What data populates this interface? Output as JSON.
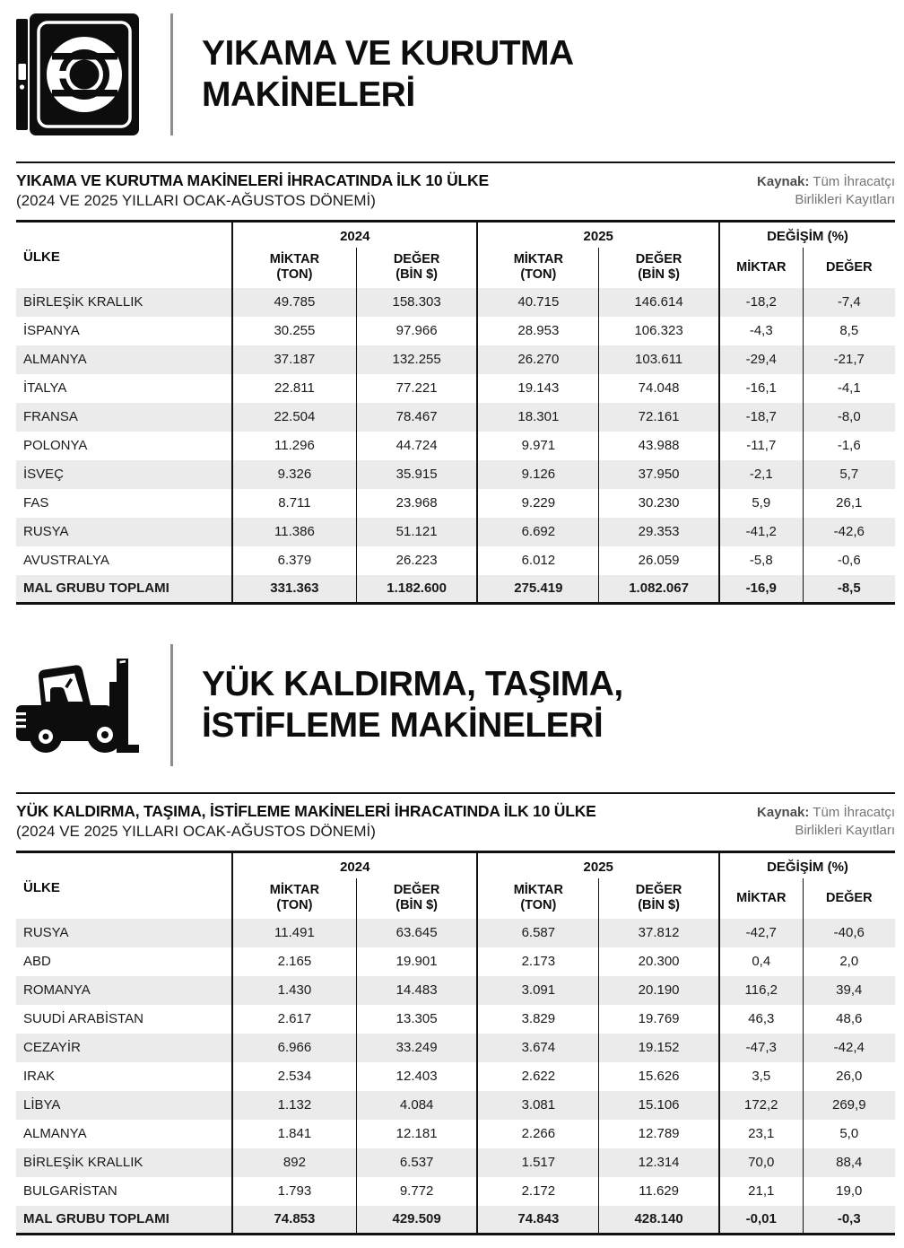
{
  "page": {
    "source": {
      "label": "Kaynak:",
      "line1_rest": "Tüm İhracatçı",
      "line2": "Birlikleri Kayıtları"
    },
    "table_header": {
      "country": "ÜLKE",
      "year_2024": "2024",
      "year_2025": "2025",
      "change": "DEĞİŞİM (%)",
      "qty": "MİKTAR",
      "qty_unit": "(TON)",
      "val": "DEĞER",
      "val_unit": "(BİN $)"
    }
  },
  "colors": {
    "text": "#111111",
    "stripe": "#ebebeb",
    "divider": "#8c8c8c",
    "source_gray": "#757575"
  },
  "sections": [
    {
      "icon": "washing-machine-icon",
      "title_line1": "YIKAMA VE KURUTMA",
      "title_line2": "MAKİNELERİ",
      "table_title": "YIKAMA VE KURUTMA MAKİNELERİ İHRACATINDA İLK 10 ÜLKE",
      "table_subtitle": "(2024 VE 2025 YILLARI OCAK-AĞUSTOS DÖNEMİ)",
      "rows": [
        [
          "BİRLEŞİK KRALLIK",
          "49.785",
          "158.303",
          "40.715",
          "146.614",
          "-18,2",
          "-7,4"
        ],
        [
          "İSPANYA",
          "30.255",
          "97.966",
          "28.953",
          "106.323",
          "-4,3",
          "8,5"
        ],
        [
          "ALMANYA",
          "37.187",
          "132.255",
          "26.270",
          "103.611",
          "-29,4",
          "-21,7"
        ],
        [
          "İTALYA",
          "22.811",
          "77.221",
          "19.143",
          "74.048",
          "-16,1",
          "-4,1"
        ],
        [
          "FRANSA",
          "22.504",
          "78.467",
          "18.301",
          "72.161",
          "-18,7",
          "-8,0"
        ],
        [
          "POLONYA",
          "11.296",
          "44.724",
          "9.971",
          "43.988",
          "-11,7",
          "-1,6"
        ],
        [
          "İSVEÇ",
          "9.326",
          "35.915",
          "9.126",
          "37.950",
          "-2,1",
          "5,7"
        ],
        [
          "FAS",
          "8.711",
          "23.968",
          "9.229",
          "30.230",
          "5,9",
          "26,1"
        ],
        [
          "RUSYA",
          "11.386",
          "51.121",
          "6.692",
          "29.353",
          "-41,2",
          "-42,6"
        ],
        [
          "AVUSTRALYA",
          "6.379",
          "26.223",
          "6.012",
          "26.059",
          "-5,8",
          "-0,6"
        ]
      ],
      "total_row": [
        "MAL GRUBU TOPLAMI",
        "331.363",
        "1.182.600",
        "275.419",
        "1.082.067",
        "-16,9",
        "-8,5"
      ]
    },
    {
      "icon": "forklift-icon",
      "title_line1": "YÜK KALDIRMA, TAŞIMA,",
      "title_line2": "İSTİFLEME MAKİNELERİ",
      "table_title": "YÜK KALDIRMA, TAŞIMA, İSTİFLEME MAKİNELERİ İHRACATINDA İLK 10 ÜLKE",
      "table_subtitle": "(2024 VE 2025 YILLARI OCAK-AĞUSTOS DÖNEMİ)",
      "rows": [
        [
          "RUSYA",
          "11.491",
          "63.645",
          "6.587",
          "37.812",
          "-42,7",
          "-40,6"
        ],
        [
          "ABD",
          "2.165",
          "19.901",
          "2.173",
          "20.300",
          "0,4",
          "2,0"
        ],
        [
          "ROMANYA",
          "1.430",
          "14.483",
          "3.091",
          "20.190",
          "116,2",
          "39,4"
        ],
        [
          "SUUDİ ARABİSTAN",
          "2.617",
          "13.305",
          "3.829",
          "19.769",
          "46,3",
          "48,6"
        ],
        [
          "CEZAYİR",
          "6.966",
          "33.249",
          "3.674",
          "19.152",
          "-47,3",
          "-42,4"
        ],
        [
          "IRAK",
          "2.534",
          "12.403",
          "2.622",
          "15.626",
          "3,5",
          "26,0"
        ],
        [
          "LİBYA",
          "1.132",
          "4.084",
          "3.081",
          "15.106",
          "172,2",
          "269,9"
        ],
        [
          "ALMANYA",
          "1.841",
          "12.181",
          "2.266",
          "12.789",
          "23,1",
          "5,0"
        ],
        [
          "BİRLEŞİK KRALLIK",
          "892",
          "6.537",
          "1.517",
          "12.314",
          "70,0",
          "88,4"
        ],
        [
          "BULGARİSTAN",
          "1.793",
          "9.772",
          "2.172",
          "11.629",
          "21,1",
          "19,0"
        ]
      ],
      "total_row": [
        "MAL GRUBU TOPLAMI",
        "74.853",
        "429.509",
        "74.843",
        "428.140",
        "-0,01",
        "-0,3"
      ]
    }
  ]
}
